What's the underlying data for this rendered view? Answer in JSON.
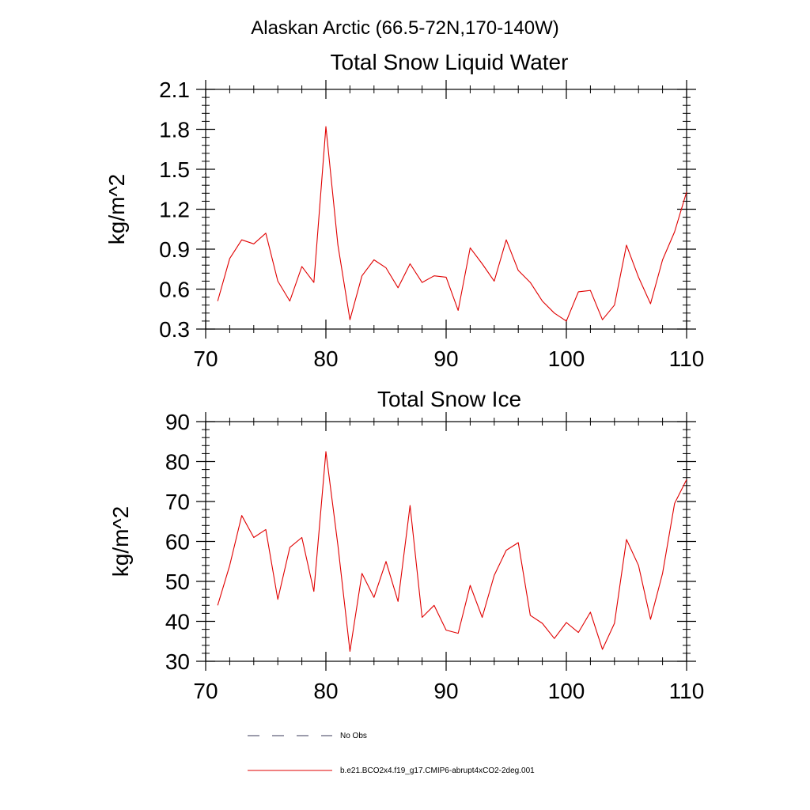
{
  "figure": {
    "title": "Alaskan Arctic (66.5-72N,170-140W)"
  },
  "colors": {
    "model_line": "#e00000",
    "obs_line": "#3a3a5a",
    "axes": "#000000"
  },
  "legend": {
    "placement": "bottom-center",
    "entries": [
      {
        "label": "No Obs",
        "style": "dashed",
        "color": "#3a3a5a"
      },
      {
        "label": "b.e21.BCO2x4.f19_g17.CMIP6-abrupt4xCO2-2deg.001",
        "style": "solid",
        "color": "#e00000"
      }
    ]
  },
  "chart_data": [
    {
      "type": "line",
      "title": "Total Snow Liquid Water",
      "xlabel": "",
      "ylabel": "kg/m^2",
      "xlim": [
        70,
        110
      ],
      "ylim": [
        0.3,
        2.1
      ],
      "xticks": [
        70,
        80,
        90,
        100,
        110
      ],
      "yticks": [
        0.3,
        0.6,
        0.9,
        1.2,
        1.5,
        1.8,
        2.1
      ],
      "ytick_labels": [
        "0.3",
        "0.6",
        "0.9",
        "1.2",
        "1.5",
        "1.8",
        "2.1"
      ],
      "grid": false,
      "series": [
        {
          "x": [
            71,
            72,
            73,
            74,
            75,
            76,
            77,
            78,
            79,
            80,
            81,
            82,
            83,
            84,
            85,
            86,
            87,
            88,
            89,
            90,
            91,
            92,
            93,
            94,
            95,
            96,
            97,
            98,
            99,
            100,
            101,
            102,
            103,
            104,
            105,
            106,
            107,
            108,
            109,
            110
          ],
          "values": [
            0.51,
            0.83,
            0.97,
            0.94,
            1.02,
            0.66,
            0.51,
            0.77,
            0.65,
            1.82,
            0.93,
            0.37,
            0.7,
            0.82,
            0.76,
            0.61,
            0.79,
            0.65,
            0.7,
            0.69,
            0.44,
            0.91,
            0.79,
            0.66,
            0.97,
            0.74,
            0.65,
            0.51,
            0.42,
            0.36,
            0.58,
            0.59,
            0.37,
            0.48,
            0.93,
            0.69,
            0.49,
            0.82,
            1.03,
            1.33
          ]
        }
      ]
    },
    {
      "type": "line",
      "title": "Total Snow Ice",
      "xlabel": "",
      "ylabel": "kg/m^2",
      "xlim": [
        70,
        110
      ],
      "ylim": [
        30,
        90
      ],
      "xticks": [
        70,
        80,
        90,
        100,
        110
      ],
      "yticks": [
        30,
        40,
        50,
        60,
        70,
        80,
        90
      ],
      "ytick_labels": [
        "30",
        "40",
        "50",
        "60",
        "70",
        "80",
        "90"
      ],
      "grid": false,
      "series": [
        {
          "x": [
            71,
            72,
            73,
            74,
            75,
            76,
            77,
            78,
            79,
            80,
            81,
            82,
            83,
            84,
            85,
            86,
            87,
            88,
            89,
            90,
            91,
            92,
            93,
            94,
            95,
            96,
            97,
            98,
            99,
            100,
            101,
            102,
            103,
            104,
            105,
            106,
            107,
            108,
            109,
            110
          ],
          "values": [
            44,
            54,
            66.5,
            61,
            63,
            45.5,
            58.5,
            61,
            47.5,
            82.5,
            59,
            32.5,
            52,
            46,
            55,
            45,
            69,
            41,
            44,
            37.8,
            37,
            49,
            41,
            51.5,
            57.8,
            59.7,
            41.5,
            39.5,
            35.7,
            39.7,
            37.2,
            42.3,
            33,
            39.5,
            60.5,
            54,
            40.5,
            52,
            69.5,
            75.5
          ]
        }
      ]
    }
  ]
}
